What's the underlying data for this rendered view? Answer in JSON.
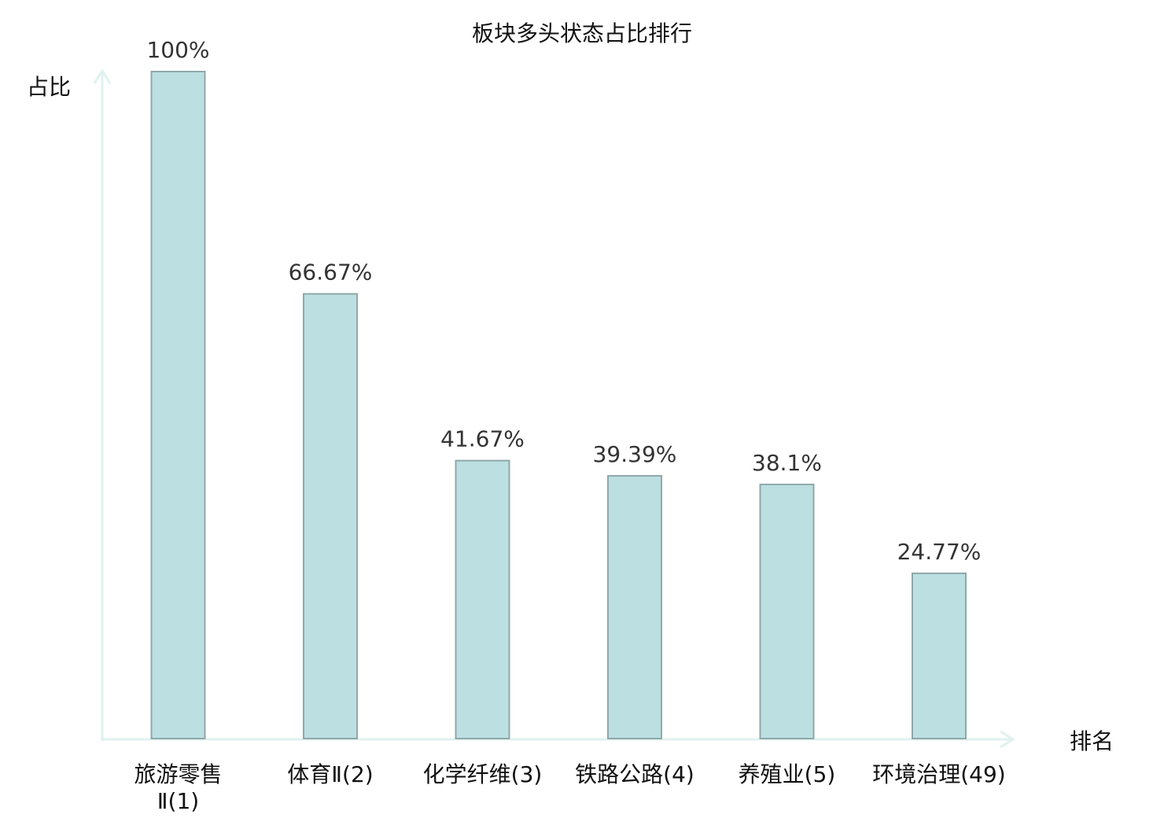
{
  "chart_data": {
    "type": "bar",
    "title": "板块多头状态占比排行",
    "xlabel": "排名",
    "ylabel": "占比",
    "ylim": [
      0,
      100
    ],
    "categories": [
      {
        "name": "旅游零售Ⅱ",
        "rank": "(1)",
        "lines": [
          "旅游零售",
          "Ⅱ(1)"
        ]
      },
      {
        "name": "体育Ⅱ",
        "rank": "(2)",
        "lines": [
          "体育Ⅱ(2)"
        ]
      },
      {
        "name": "化学纤维",
        "rank": "(3)",
        "lines": [
          "化学纤维(3)"
        ]
      },
      {
        "name": "铁路公路",
        "rank": "(4)",
        "lines": [
          "铁路公路(4)"
        ]
      },
      {
        "name": "养殖业",
        "rank": "(5)",
        "lines": [
          "养殖业(5)"
        ]
      },
      {
        "name": "环境治理",
        "rank": "(49)",
        "lines": [
          "环境治理(49)"
        ],
        "highlight": true
      }
    ],
    "values": [
      100,
      66.67,
      41.67,
      39.39,
      38.1,
      24.77
    ],
    "value_labels": [
      "100%",
      "66.67%",
      "41.67%",
      "39.39%",
      "38.1%",
      "24.77%"
    ],
    "grid": false,
    "legend": "none"
  },
  "colors": {
    "bar_fill": "#bce0e2",
    "bar_stroke": "#8fa8aa",
    "axis": "#e0f2ef",
    "highlight_text": "#e0201b",
    "text": "#111111",
    "value_text": "#333333"
  }
}
